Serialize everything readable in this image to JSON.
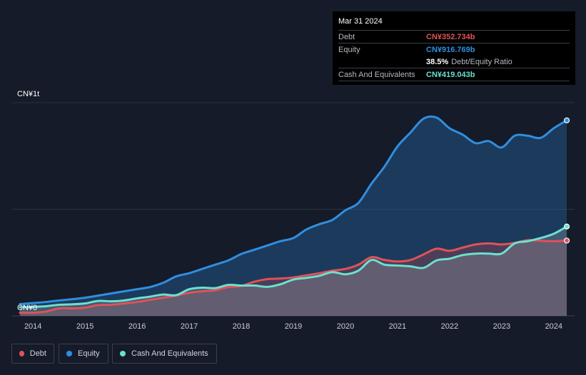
{
  "colors": {
    "debt": "#e0525a",
    "equity": "#2f8fe0",
    "cash": "#6ce0cf",
    "background": "#151b28"
  },
  "tooltip": {
    "date": "Mar 31 2024",
    "debt_label": "Debt",
    "debt_value": "CN¥352.734b",
    "equity_label": "Equity",
    "equity_value": "CN¥916.769b",
    "ratio_value": "38.5%",
    "ratio_label": "Debt/Equity Ratio",
    "cash_label": "Cash And Equivalents",
    "cash_value": "CN¥419.043b"
  },
  "legend": {
    "debt": "Debt",
    "equity": "Equity",
    "cash": "Cash And Equivalents"
  },
  "chart_data": {
    "type": "area",
    "title": "",
    "xlabel": "",
    "ylabel": "",
    "y_tick_top": "CN¥1t",
    "y_tick_bottom": "CN¥0",
    "xlim": [
      2013.6,
      2024.4
    ],
    "ylim": [
      0,
      1000
    ],
    "x_ticks": [
      "2014",
      "2015",
      "2016",
      "2017",
      "2018",
      "2019",
      "2020",
      "2021",
      "2022",
      "2023",
      "2024"
    ],
    "x_tick_values": [
      2014,
      2015,
      2016,
      2017,
      2018,
      2019,
      2020,
      2021,
      2022,
      2023,
      2024
    ],
    "units": "CN¥ billions",
    "series": [
      {
        "name": "Equity",
        "x": [
          2013.75,
          2014.0,
          2014.25,
          2014.5,
          2014.75,
          2015.0,
          2015.25,
          2015.5,
          2015.75,
          2016.0,
          2016.25,
          2016.5,
          2016.75,
          2017.0,
          2017.25,
          2017.5,
          2017.75,
          2018.0,
          2018.25,
          2018.5,
          2018.75,
          2019.0,
          2019.25,
          2019.5,
          2019.75,
          2020.0,
          2020.25,
          2020.5,
          2020.75,
          2021.0,
          2021.25,
          2021.5,
          2021.75,
          2022.0,
          2022.25,
          2022.5,
          2022.75,
          2023.0,
          2023.25,
          2023.5,
          2023.75,
          2024.0,
          2024.25
        ],
        "values": [
          55,
          60,
          65,
          72,
          78,
          85,
          95,
          105,
          115,
          125,
          135,
          155,
          185,
          200,
          220,
          240,
          260,
          290,
          310,
          330,
          350,
          365,
          405,
          430,
          450,
          495,
          530,
          620,
          700,
          795,
          860,
          925,
          930,
          880,
          850,
          810,
          820,
          790,
          845,
          845,
          835,
          880,
          917
        ]
      },
      {
        "name": "Debt",
        "x": [
          2013.75,
          2014.0,
          2014.25,
          2014.5,
          2014.75,
          2015.0,
          2015.25,
          2015.5,
          2015.75,
          2016.0,
          2016.25,
          2016.5,
          2016.75,
          2017.0,
          2017.25,
          2017.5,
          2017.75,
          2018.0,
          2018.25,
          2018.5,
          2018.75,
          2019.0,
          2019.25,
          2019.5,
          2019.75,
          2020.0,
          2020.25,
          2020.5,
          2020.75,
          2021.0,
          2021.25,
          2021.5,
          2021.75,
          2022.0,
          2022.25,
          2022.5,
          2022.75,
          2023.0,
          2023.25,
          2023.5,
          2023.75,
          2024.0,
          2024.25
        ],
        "values": [
          15,
          15,
          20,
          35,
          35,
          38,
          50,
          52,
          58,
          65,
          75,
          85,
          95,
          108,
          115,
          120,
          135,
          140,
          160,
          172,
          175,
          180,
          190,
          200,
          212,
          220,
          240,
          275,
          262,
          255,
          262,
          288,
          315,
          305,
          320,
          335,
          340,
          335,
          342,
          355,
          352,
          350,
          353
        ]
      },
      {
        "name": "Cash And Equivalents",
        "x": [
          2013.75,
          2014.0,
          2014.25,
          2014.5,
          2014.75,
          2015.0,
          2015.25,
          2015.5,
          2015.75,
          2016.0,
          2016.25,
          2016.5,
          2016.75,
          2017.0,
          2017.25,
          2017.5,
          2017.75,
          2018.0,
          2018.25,
          2018.5,
          2018.75,
          2019.0,
          2019.25,
          2019.5,
          2019.75,
          2020.0,
          2020.25,
          2020.5,
          2020.75,
          2021.0,
          2021.25,
          2021.5,
          2021.75,
          2022.0,
          2022.25,
          2022.5,
          2022.75,
          2023.0,
          2023.25,
          2023.5,
          2023.75,
          2024.0,
          2024.25
        ],
        "values": [
          40,
          42,
          45,
          52,
          54,
          58,
          70,
          68,
          72,
          82,
          90,
          100,
          97,
          125,
          132,
          130,
          145,
          142,
          142,
          136,
          148,
          170,
          178,
          188,
          205,
          195,
          212,
          262,
          240,
          236,
          232,
          225,
          260,
          268,
          285,
          292,
          292,
          292,
          340,
          350,
          365,
          385,
          419
        ]
      }
    ]
  }
}
